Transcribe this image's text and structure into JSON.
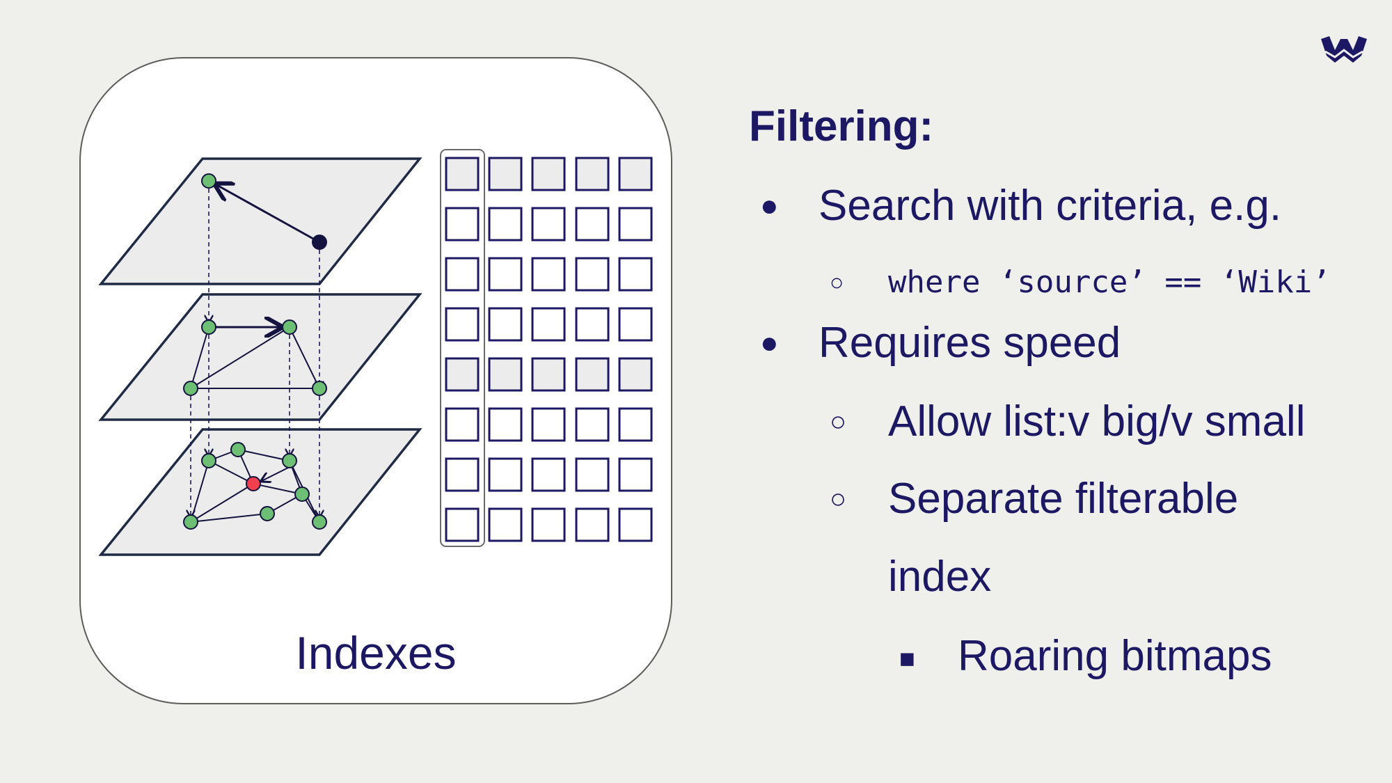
{
  "slide": {
    "caption": "Indexes",
    "heading": "Filtering:",
    "items": [
      {
        "bullet": "●",
        "text": "Search with criteria, e.g."
      },
      {
        "bullet": "○",
        "text": "where ‘source’ == ‘Wiki’"
      },
      {
        "bullet": "●",
        "text": "Requires speed"
      },
      {
        "bullet": "○",
        "text": "Allow list:v big/v small"
      },
      {
        "bullet": "○",
        "text": "Separate filterable"
      },
      {
        "bullet": "",
        "text": "index"
      },
      {
        "bullet": "■",
        "text": "Roaring bitmaps"
      }
    ]
  },
  "colors": {
    "background": "#efefeb",
    "text": "#1c1863",
    "plane_fill": "#ececec",
    "plane_stroke": "#1f2a44",
    "node_green": "#6cbf73",
    "node_red": "#f0404e",
    "node_dark": "#14123e"
  },
  "icons": {
    "logo": "weaviate-logo-icon"
  }
}
